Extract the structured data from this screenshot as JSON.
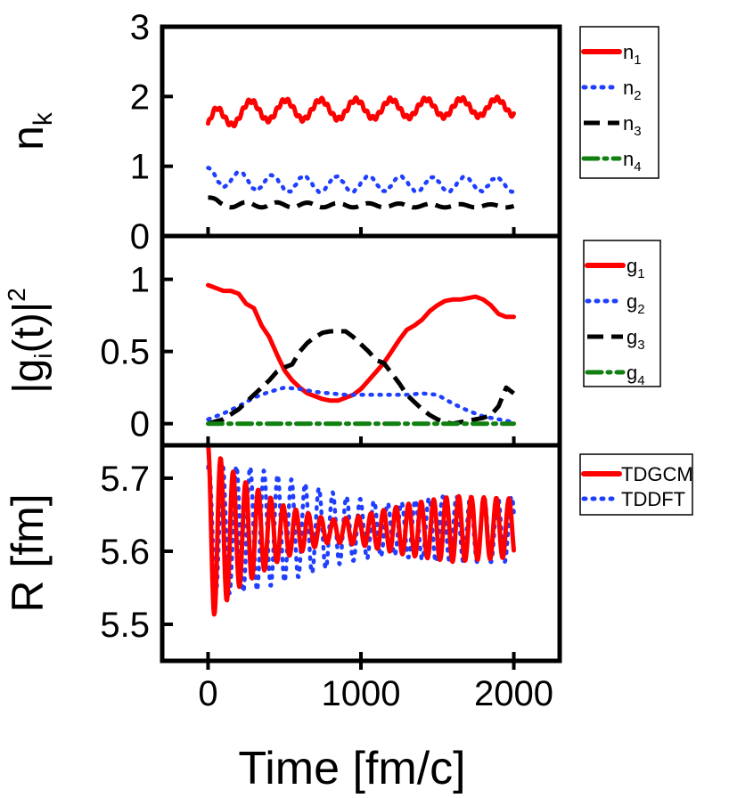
{
  "chart_data": [
    {
      "type": "line",
      "ylabel": "nk",
      "ylim": [
        0,
        3
      ],
      "yticks": [
        "0",
        "1",
        "2",
        "3"
      ],
      "xlim": [
        -300,
        2300
      ],
      "legend": [
        {
          "base": "n",
          "sub": "1",
          "color": "#ff0000",
          "style": "solid"
        },
        {
          "base": "n",
          "sub": "2",
          "color": "#1f3fff",
          "style": "dotted"
        },
        {
          "base": "n",
          "sub": "3",
          "color": "#000000",
          "style": "dashed"
        },
        {
          "base": "n",
          "sub": "4",
          "color": "#108010",
          "style": "dashdot"
        }
      ],
      "series": [
        {
          "key": "n1",
          "kind": "osc",
          "t0": 0,
          "t1": 2000,
          "base": [
            [
              0,
              1.55
            ],
            [
              60,
              1.7
            ],
            [
              300,
              1.8
            ],
            [
              2000,
              1.85
            ]
          ],
          "amp": [
            [
              0,
              0.15
            ],
            [
              2000,
              0.12
            ]
          ],
          "period": 230,
          "phase": 0.3,
          "jitter": 0.03,
          "color": "#ff0000",
          "style": "solid"
        },
        {
          "key": "n2",
          "kind": "osc",
          "t0": 0,
          "t1": 2000,
          "base": [
            [
              0,
              0.85
            ],
            [
              400,
              0.75
            ],
            [
              2000,
              0.74
            ]
          ],
          "amp": [
            [
              0,
              0.12
            ],
            [
              2000,
              0.1
            ]
          ],
          "period": 210,
          "phase": 1.6,
          "jitter": 0.01,
          "color": "#1f3fff",
          "style": "dotted"
        },
        {
          "key": "n3",
          "kind": "osc",
          "t0": 0,
          "t1": 2000,
          "base": [
            [
              0,
              0.55
            ],
            [
              80,
              0.45
            ],
            [
              2000,
              0.43
            ]
          ],
          "amp": [
            [
              0,
              0.04
            ],
            [
              2000,
              0.02
            ]
          ],
          "period": 200,
          "phase": 0.0,
          "jitter": 0.0,
          "color": "#000000",
          "style": "dashed"
        },
        {
          "key": "n4",
          "kind": "osc",
          "t0": 0,
          "t1": 2000,
          "base": [
            [
              0,
              0.0
            ],
            [
              2000,
              0.0
            ]
          ],
          "amp": [
            [
              0,
              0.0
            ],
            [
              2000,
              0.0
            ]
          ],
          "period": 200,
          "phase": 0.0,
          "jitter": 0.0,
          "color": "#108010",
          "style": "dashdot"
        }
      ]
    },
    {
      "type": "line",
      "ylabel": "|gi(t)|2",
      "ylim": [
        -0.15,
        1.3
      ],
      "yticks": [
        "0",
        "0.5",
        "1"
      ],
      "xlim": [
        -300,
        2300
      ],
      "legend": [
        {
          "base": "g",
          "sub": "1",
          "color": "#ff0000",
          "style": "solid"
        },
        {
          "base": "g",
          "sub": "2",
          "color": "#1f3fff",
          "style": "dotted"
        },
        {
          "base": "g",
          "sub": "3",
          "color": "#000000",
          "style": "dashed"
        },
        {
          "base": "g",
          "sub": "4",
          "color": "#108010",
          "style": "dashdot"
        }
      ],
      "series": [
        {
          "key": "g1",
          "kind": "points",
          "color": "#ff0000",
          "style": "solid",
          "points": [
            [
              0,
              0.96
            ],
            [
              50,
              0.94
            ],
            [
              100,
              0.92
            ],
            [
              150,
              0.92
            ],
            [
              200,
              0.9
            ],
            [
              250,
              0.83
            ],
            [
              300,
              0.8
            ],
            [
              350,
              0.68
            ],
            [
              400,
              0.6
            ],
            [
              450,
              0.48
            ],
            [
              500,
              0.37
            ],
            [
              550,
              0.3
            ],
            [
              600,
              0.25
            ],
            [
              650,
              0.21
            ],
            [
              700,
              0.19
            ],
            [
              750,
              0.17
            ],
            [
              800,
              0.16
            ],
            [
              850,
              0.16
            ],
            [
              900,
              0.18
            ],
            [
              950,
              0.2
            ],
            [
              1000,
              0.24
            ],
            [
              1050,
              0.3
            ],
            [
              1100,
              0.36
            ],
            [
              1150,
              0.42
            ],
            [
              1200,
              0.5
            ],
            [
              1250,
              0.58
            ],
            [
              1300,
              0.65
            ],
            [
              1350,
              0.68
            ],
            [
              1400,
              0.72
            ],
            [
              1450,
              0.78
            ],
            [
              1500,
              0.82
            ],
            [
              1550,
              0.85
            ],
            [
              1600,
              0.86
            ],
            [
              1650,
              0.86
            ],
            [
              1700,
              0.87
            ],
            [
              1750,
              0.88
            ],
            [
              1800,
              0.86
            ],
            [
              1850,
              0.82
            ],
            [
              1900,
              0.76
            ],
            [
              1950,
              0.74
            ],
            [
              2000,
              0.74
            ]
          ]
        },
        {
          "key": "g2",
          "kind": "points",
          "color": "#1f3fff",
          "style": "dotted",
          "points": [
            [
              0,
              0.03
            ],
            [
              100,
              0.07
            ],
            [
              200,
              0.12
            ],
            [
              300,
              0.18
            ],
            [
              400,
              0.22
            ],
            [
              500,
              0.25
            ],
            [
              600,
              0.24
            ],
            [
              700,
              0.22
            ],
            [
              800,
              0.21
            ],
            [
              900,
              0.2
            ],
            [
              1000,
              0.2
            ],
            [
              1100,
              0.2
            ],
            [
              1200,
              0.2
            ],
            [
              1300,
              0.2
            ],
            [
              1400,
              0.21
            ],
            [
              1500,
              0.2
            ],
            [
              1600,
              0.14
            ],
            [
              1700,
              0.09
            ],
            [
              1800,
              0.05
            ],
            [
              1900,
              0.03
            ],
            [
              2000,
              0.01
            ]
          ]
        },
        {
          "key": "g3",
          "kind": "points",
          "color": "#000000",
          "style": "dashed",
          "points": [
            [
              0,
              0.0
            ],
            [
              100,
              0.03
            ],
            [
              200,
              0.1
            ],
            [
              300,
              0.2
            ],
            [
              400,
              0.3
            ],
            [
              450,
              0.36
            ],
            [
              500,
              0.39
            ],
            [
              550,
              0.41
            ],
            [
              600,
              0.5
            ],
            [
              650,
              0.56
            ],
            [
              700,
              0.6
            ],
            [
              750,
              0.63
            ],
            [
              800,
              0.64
            ],
            [
              850,
              0.64
            ],
            [
              900,
              0.64
            ],
            [
              950,
              0.6
            ],
            [
              1000,
              0.55
            ],
            [
              1050,
              0.5
            ],
            [
              1100,
              0.44
            ],
            [
              1150,
              0.42
            ],
            [
              1200,
              0.35
            ],
            [
              1250,
              0.28
            ],
            [
              1300,
              0.2
            ],
            [
              1350,
              0.15
            ],
            [
              1400,
              0.1
            ],
            [
              1450,
              0.06
            ],
            [
              1500,
              0.03
            ],
            [
              1550,
              0.01
            ],
            [
              1600,
              0.0
            ],
            [
              1700,
              0.02
            ],
            [
              1800,
              0.04
            ],
            [
              1850,
              0.06
            ],
            [
              1900,
              0.12
            ],
            [
              1950,
              0.25
            ],
            [
              2000,
              0.21
            ]
          ]
        },
        {
          "key": "g4",
          "kind": "points",
          "color": "#108010",
          "style": "dashdot",
          "points": [
            [
              0,
              0.0
            ],
            [
              2000,
              0.0
            ]
          ]
        }
      ]
    },
    {
      "type": "line",
      "ylabel": "R [fm]",
      "xlabel": "Time [fm/c]",
      "ylim": [
        5.45,
        5.745
      ],
      "yticks": [
        "5.5",
        "5.6",
        "5.7"
      ],
      "xticks": [
        "0",
        "1000",
        "2000"
      ],
      "xtick_values": [
        0,
        1000,
        2000
      ],
      "xlim": [
        -300,
        2300
      ],
      "legend": [
        {
          "base": "TDGCM",
          "sub": "",
          "color": "#ff0000",
          "style": "solid"
        },
        {
          "base": "TDDFT",
          "sub": "",
          "color": "#1f3fff",
          "style": "dotted"
        }
      ],
      "series": [
        {
          "key": "tddft",
          "kind": "osc",
          "t0": 0,
          "t1": 2000,
          "base": [
            [
              0,
              5.63
            ],
            [
              2000,
              5.63
            ]
          ],
          "amp": [
            [
              0,
              0.09
            ],
            [
              300,
              0.085
            ],
            [
              900,
              0.045
            ],
            [
              1200,
              0.035
            ],
            [
              1500,
              0.045
            ],
            [
              2000,
              0.045
            ]
          ],
          "period": 90,
          "phase": 1.2,
          "jitter": 0.0,
          "color": "#1f3fff",
          "style": "dotted"
        },
        {
          "key": "tdgcm",
          "kind": "osc",
          "t0": 0,
          "t1": 2000,
          "base": [
            [
              0,
              5.625
            ],
            [
              2000,
              5.632
            ]
          ],
          "amp": [
            [
              0,
              0.12
            ],
            [
              50,
              0.11
            ],
            [
              200,
              0.075
            ],
            [
              500,
              0.035
            ],
            [
              800,
              0.015
            ],
            [
              1000,
              0.02
            ],
            [
              1300,
              0.035
            ],
            [
              1600,
              0.045
            ],
            [
              2000,
              0.04
            ]
          ],
          "period": 82,
          "phase": 1.57,
          "jitter": 0.0,
          "color": "#ff0000",
          "style": "solid"
        }
      ]
    }
  ]
}
